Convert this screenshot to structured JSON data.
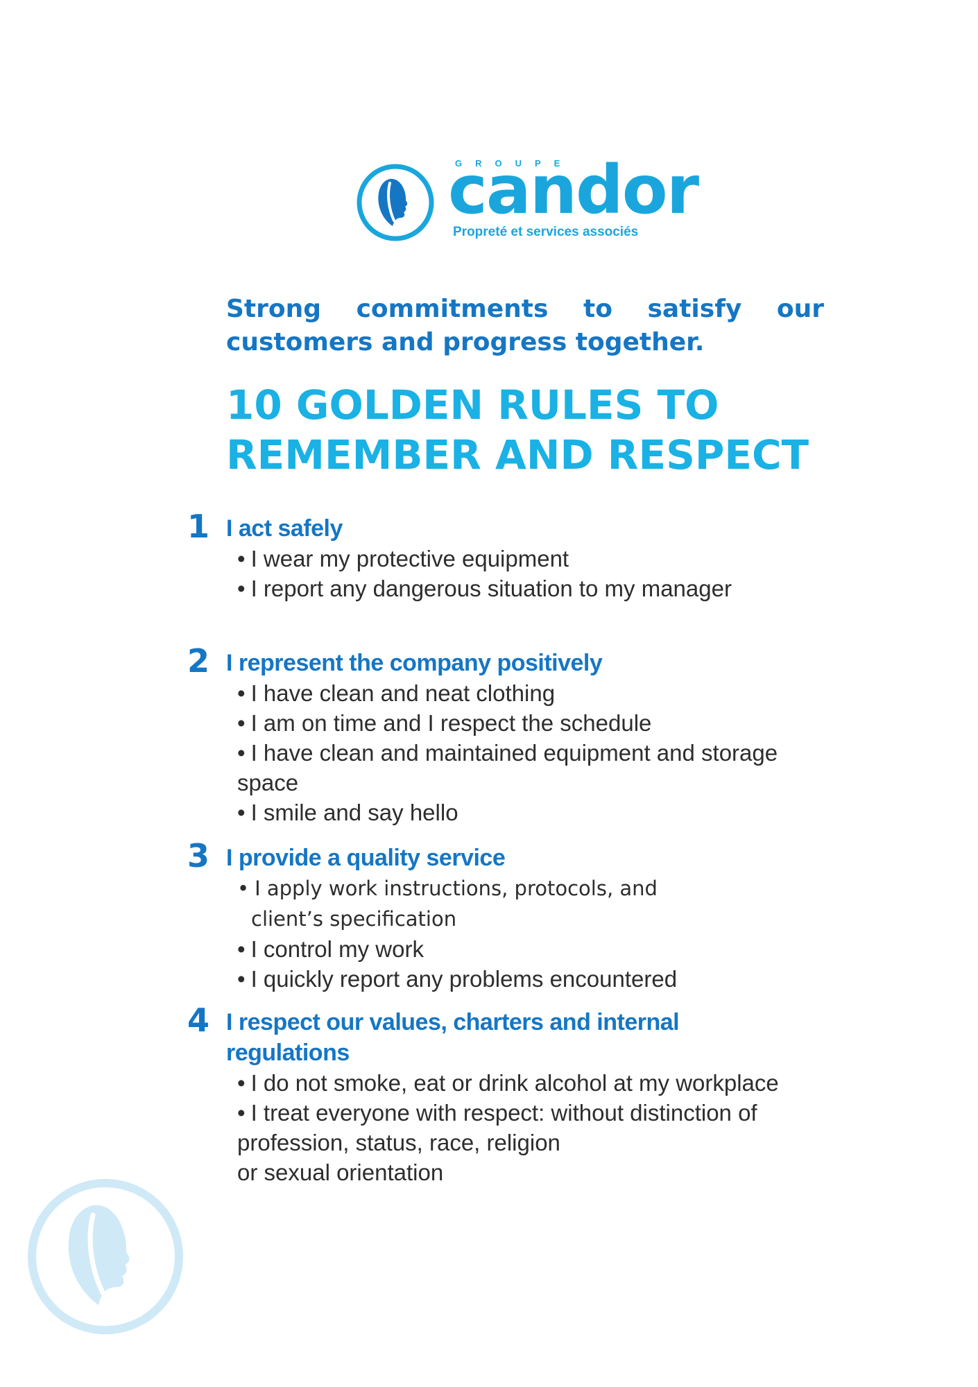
{
  "logo": {
    "group": "GROUPE",
    "name": "candor",
    "tagline": "Propreté et services associés",
    "icon": "profile-head-icon",
    "color": "#1aa6dc"
  },
  "intro": "Strong commitments to satisfy our customers and progress together.",
  "title": {
    "line1": "10 GOLDEN RULES TO",
    "line2": "REMEMBER AND RESPECT"
  },
  "rules": [
    {
      "number": "1",
      "title": "I act safely",
      "bullets": [
        "I wear my protective equipment",
        "I report any dangerous situation to my manager"
      ]
    },
    {
      "number": "2",
      "title": "I represent the company positively",
      "bullets": [
        "I have clean and neat clothing",
        "I am on time and I respect the schedule",
        "I have clean and maintained equipment and storage",
        "space",
        "I smile and say hello"
      ]
    },
    {
      "number": "3",
      "title": "I provide a quality service",
      "bullets": [
        "I apply work instructions, protocols, and",
        "client’s specification",
        "I control my work",
        "I quickly report any problems encountered"
      ]
    },
    {
      "number": "4",
      "title": "I respect our values, charters and internal",
      "title2": "regulations",
      "bullets": [
        "I do not smoke, eat or drink alcohol at my workplace",
        "I treat everyone with respect: without distinction of",
        "profession, status, race, religion",
        "or sexual orientation"
      ]
    }
  ],
  "colors": {
    "primary": "#1576c4",
    "accent": "#1ab1e4",
    "text": "#2d2d2d",
    "watermark": "#cfe9f7"
  }
}
